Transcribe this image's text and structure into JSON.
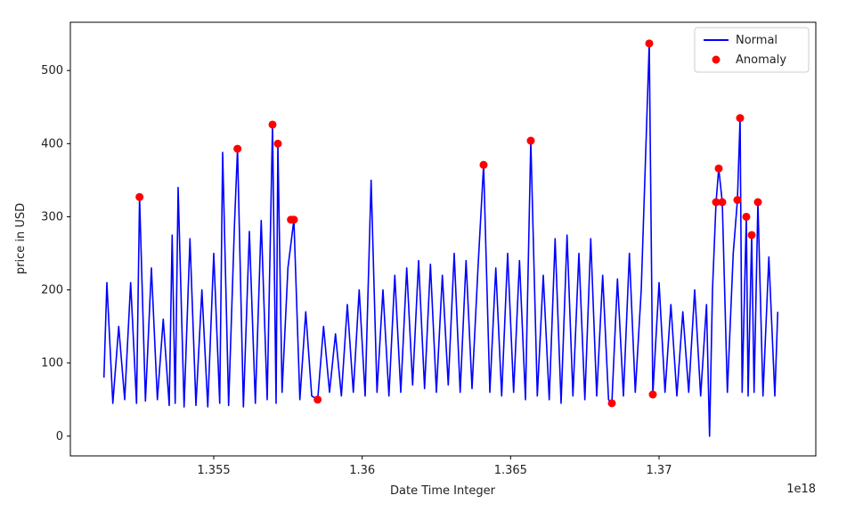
{
  "chart_data": {
    "type": "line_scatter",
    "xlabel": "Date Time Integer",
    "ylabel": "price in USD",
    "x_offset_label": "1e18",
    "xlim": [
      1.35017,
      1.37528
    ],
    "xticks": [
      1.355,
      1.36,
      1.365,
      1.37
    ],
    "ylim": [
      -27,
      566
    ],
    "yticks": [
      0,
      100,
      200,
      300,
      400,
      500
    ],
    "legend": "upper right",
    "series": [
      {
        "name": "Normal",
        "color": "#0000ff",
        "type": "line",
        "x": [
          1.3513,
          1.3514,
          1.3516,
          1.3518,
          1.352,
          1.3522,
          1.3524,
          1.3525,
          1.3527,
          1.3529,
          1.3531,
          1.3533,
          1.3535,
          1.3536,
          1.3537,
          1.3538,
          1.354,
          1.3542,
          1.3544,
          1.3546,
          1.3548,
          1.355,
          1.3552,
          1.3553,
          1.3555,
          1.3557,
          1.3558,
          1.356,
          1.3562,
          1.3564,
          1.3566,
          1.3568,
          1.35698,
          1.3571,
          1.35716,
          1.3573,
          1.3575,
          1.3577,
          1.3579,
          1.3581,
          1.3583,
          1.3585,
          1.3587,
          1.3589,
          1.3591,
          1.3593,
          1.3595,
          1.3597,
          1.3599,
          1.3601,
          1.3603,
          1.3605,
          1.3607,
          1.3609,
          1.3611,
          1.3613,
          1.3615,
          1.3617,
          1.3619,
          1.3621,
          1.3623,
          1.3625,
          1.3627,
          1.3629,
          1.3631,
          1.3633,
          1.3635,
          1.3637,
          1.3639,
          1.36409,
          1.3643,
          1.3645,
          1.3647,
          1.3649,
          1.3651,
          1.3653,
          1.3655,
          1.36568,
          1.3659,
          1.3661,
          1.3663,
          1.3665,
          1.3667,
          1.3669,
          1.3671,
          1.3673,
          1.3675,
          1.3677,
          1.3679,
          1.3681,
          1.3683,
          1.36841,
          1.3686,
          1.3688,
          1.369,
          1.3692,
          1.3694,
          1.36967,
          1.36979,
          1.37,
          1.3702,
          1.3704,
          1.3706,
          1.3708,
          1.371,
          1.3712,
          1.3714,
          1.3716,
          1.3717,
          1.3718,
          1.37192,
          1.37201,
          1.37213,
          1.3723,
          1.3725,
          1.37264,
          1.37273,
          1.3728,
          1.37294,
          1.373,
          1.37312,
          1.3732,
          1.37333,
          1.3735,
          1.3737,
          1.3739,
          1.374
        ],
        "values": [
          80,
          210,
          45,
          150,
          50,
          210,
          45,
          327,
          48,
          230,
          50,
          160,
          42,
          275,
          45,
          340,
          40,
          270,
          42,
          200,
          40,
          250,
          45,
          388,
          42,
          290,
          393,
          40,
          280,
          45,
          295,
          50,
          426,
          45,
          400,
          60,
          230,
          296,
          50,
          170,
          55,
          50,
          150,
          60,
          140,
          55,
          180,
          60,
          200,
          55,
          350,
          60,
          200,
          55,
          220,
          60,
          230,
          70,
          240,
          65,
          235,
          60,
          220,
          70,
          250,
          60,
          240,
          65,
          230,
          371,
          60,
          230,
          55,
          250,
          60,
          240,
          50,
          404,
          55,
          220,
          50,
          270,
          45,
          275,
          55,
          250,
          50,
          270,
          55,
          220,
          50,
          45,
          215,
          55,
          250,
          60,
          200,
          537,
          57,
          210,
          60,
          180,
          55,
          170,
          60,
          200,
          55,
          180,
          0,
          200,
          320,
          366,
          320,
          60,
          250,
          323,
          435,
          60,
          300,
          55,
          275,
          60,
          320,
          55,
          245,
          55,
          170
        ]
      },
      {
        "name": "Anomaly",
        "color": "#ff0000",
        "type": "scatter",
        "x": [
          1.3525,
          1.3558,
          1.35698,
          1.35716,
          1.3576,
          1.3577,
          1.3585,
          1.36409,
          1.36568,
          1.36841,
          1.36967,
          1.36979,
          1.37192,
          1.37201,
          1.37213,
          1.37264,
          1.37273,
          1.37294,
          1.37312,
          1.37333
        ],
        "values": [
          327,
          393,
          426,
          400,
          296,
          296,
          50,
          371,
          404,
          45,
          537,
          57,
          320,
          366,
          320,
          323,
          435,
          300,
          275,
          320
        ]
      }
    ]
  }
}
